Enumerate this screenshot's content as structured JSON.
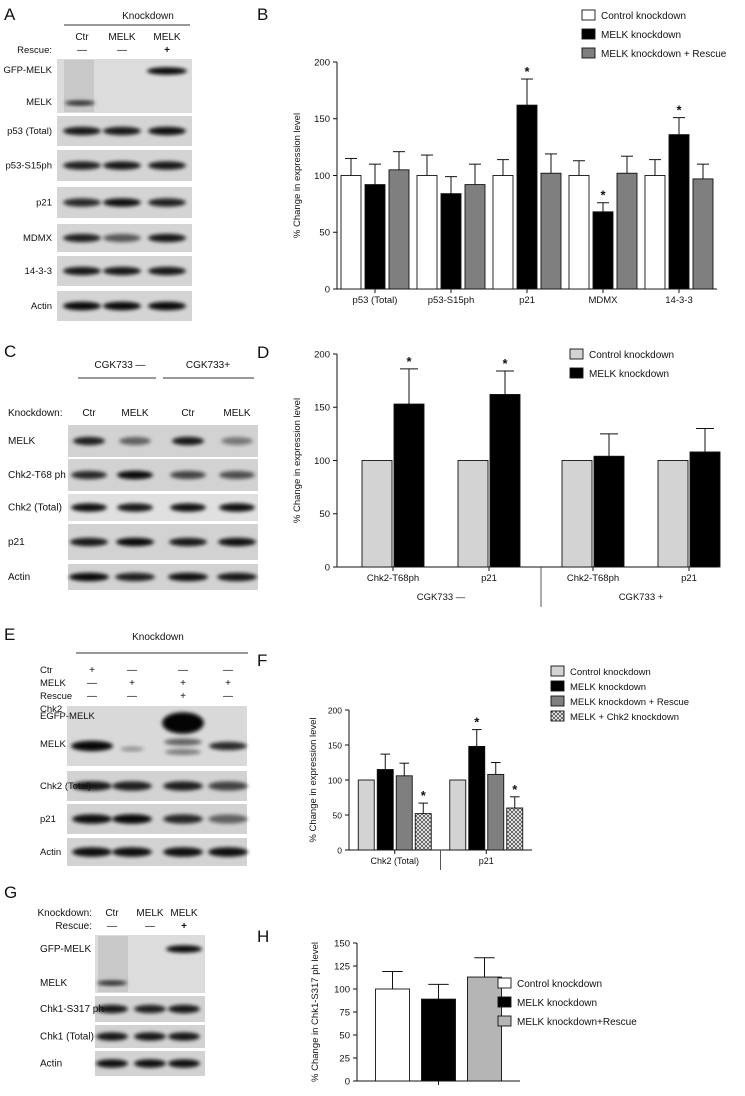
{
  "panelA": {
    "letter": "A",
    "header": "Knockdown",
    "row_label": "Rescue:",
    "lanes": [
      {
        "label": "Ctr",
        "rescue": "—"
      },
      {
        "label": "MELK",
        "rescue": "—"
      },
      {
        "label": "MELK",
        "rescue": "+"
      }
    ],
    "blots": [
      "GFP-MELK",
      "MELK",
      "p53 (Total)",
      "p53-S15ph",
      "p21",
      "MDMX",
      "14-3-3",
      "Actin"
    ]
  },
  "panelC": {
    "letter": "C",
    "groups": [
      "CGK733 —",
      "CGK733+"
    ],
    "row_label": "Knockdown:",
    "lanes": [
      "Ctr",
      "MELK",
      "Ctr",
      "MELK"
    ],
    "blots": [
      "MELK",
      "Chk2-T68 ph",
      "Chk2 (Total)",
      "p21",
      "Actin"
    ]
  },
  "panelE": {
    "letter": "E",
    "header": "Knockdown",
    "conditions": [
      {
        "name": "Ctr",
        "marks": [
          "+",
          "—",
          "—",
          "—"
        ]
      },
      {
        "name": "MELK",
        "marks": [
          "—",
          "+",
          "+",
          "+"
        ]
      },
      {
        "name": "Rescue",
        "marks": [
          "—",
          "—",
          "+",
          "—"
        ]
      },
      {
        "name": "Chk2",
        "marks": [
          "—",
          "—",
          "—",
          "+"
        ]
      }
    ],
    "blots": [
      "EGFP-MELK",
      "MELK",
      "Chk2 (Total)",
      "p21",
      "Actin"
    ]
  },
  "panelG": {
    "letter": "G",
    "knockdown_label": "Knockdown:",
    "rescue_label": "Rescue:",
    "lanes": [
      {
        "label": "Ctr",
        "rescue": "—"
      },
      {
        "label": "MELK",
        "rescue": "—"
      },
      {
        "label": "MELK",
        "rescue": "+"
      }
    ],
    "blots": [
      "GFP-MELK",
      "MELK",
      "Chk1-S317 ph",
      "Chk1 (Total)",
      "Actin"
    ]
  },
  "colors": {
    "control_white": "#ffffff",
    "control_gray": "#d3d3d3",
    "melk_black": "#000000",
    "rescue_gray": "#7f7f7f",
    "rescue_light": "#b5b5b5",
    "chk2_hatch": "#9a9a9a"
  },
  "chart_data": [
    {
      "panel": "B",
      "type": "bar",
      "ylabel": "% Change in expression level",
      "ylim": [
        0,
        200
      ],
      "yticks": [
        0,
        50,
        100,
        150,
        200
      ],
      "categories": [
        "p53 (Total)",
        "p53-S15ph",
        "p21",
        "MDMX",
        "14-3-3"
      ],
      "legend": "top-right",
      "series": [
        {
          "name": "Control knockdown",
          "color": "#ffffff",
          "values": [
            100,
            100,
            100,
            100,
            100
          ],
          "errors": [
            15,
            18,
            14,
            13,
            14
          ],
          "sig": [
            false,
            false,
            false,
            false,
            false
          ]
        },
        {
          "name": "MELK knockdown",
          "color": "#000000",
          "values": [
            92,
            84,
            162,
            68,
            136
          ],
          "errors": [
            18,
            15,
            23,
            8,
            15
          ],
          "sig": [
            false,
            false,
            true,
            true,
            true
          ]
        },
        {
          "name": "MELK knockdown + Rescue",
          "color": "#7f7f7f",
          "values": [
            105,
            92,
            102,
            102,
            97
          ],
          "errors": [
            16,
            18,
            17,
            15,
            13
          ],
          "sig": [
            false,
            false,
            false,
            false,
            false
          ]
        }
      ],
      "sig_mark": "*"
    },
    {
      "panel": "D",
      "type": "bar",
      "ylabel": "% Change in expression level",
      "ylim": [
        0,
        200
      ],
      "yticks": [
        0,
        50,
        100,
        150,
        200
      ],
      "categories": [
        "Chk2-T68ph",
        "p21",
        "Chk2-T68ph",
        "p21"
      ],
      "groups": [
        {
          "label": "CGK733 —",
          "span": [
            0,
            1
          ]
        },
        {
          "label": "CGK733 +",
          "span": [
            2,
            3
          ]
        }
      ],
      "legend": "top-right",
      "series": [
        {
          "name": "Control knockdown",
          "color": "#d3d3d3",
          "values": [
            100,
            100,
            100,
            100
          ],
          "errors": [
            0,
            0,
            0,
            0
          ],
          "sig": [
            false,
            false,
            false,
            false
          ]
        },
        {
          "name": "MELK knockdown",
          "color": "#000000",
          "values": [
            153,
            162,
            104,
            108
          ],
          "errors": [
            33,
            22,
            21,
            22
          ],
          "sig": [
            true,
            true,
            false,
            false
          ]
        }
      ],
      "sig_mark": "*"
    },
    {
      "panel": "F",
      "type": "bar",
      "ylabel": "% Change in expression level",
      "ylim": [
        0,
        200
      ],
      "yticks": [
        0,
        50,
        100,
        150,
        200
      ],
      "categories": [
        "Chk2 (Total)",
        "p21"
      ],
      "legend": "top-right",
      "series": [
        {
          "name": "Control knockdown",
          "color": "#d3d3d3",
          "values": [
            100,
            100
          ],
          "errors": [
            0,
            0
          ],
          "sig": [
            false,
            false
          ]
        },
        {
          "name": "MELK knockdown",
          "color": "#000000",
          "values": [
            115,
            148
          ],
          "errors": [
            22,
            24
          ],
          "sig": [
            false,
            true
          ]
        },
        {
          "name": "MELK knockdown + Rescue",
          "color": "#7f7f7f",
          "values": [
            106,
            108
          ],
          "errors": [
            18,
            17
          ],
          "sig": [
            false,
            false
          ]
        },
        {
          "name": "MELK + Chk2 knockdown",
          "color": "#9a9a9a",
          "hatch": true,
          "values": [
            52,
            60
          ],
          "errors": [
            15,
            16
          ],
          "sig": [
            true,
            true
          ]
        }
      ],
      "sig_mark": "*"
    },
    {
      "panel": "H",
      "type": "bar",
      "ylabel": "% Change in Chk1-S317 ph level",
      "ylim": [
        0,
        150
      ],
      "yticks": [
        0,
        25,
        50,
        75,
        100,
        125,
        150
      ],
      "categories": [
        ""
      ],
      "legend": "right",
      "series": [
        {
          "name": "Control knockdown",
          "color": "#ffffff",
          "values": [
            100
          ],
          "errors": [
            19
          ],
          "sig": [
            false
          ]
        },
        {
          "name": "MELK knockdown",
          "color": "#000000",
          "values": [
            89
          ],
          "errors": [
            16
          ],
          "sig": [
            false
          ]
        },
        {
          "name": "MELK knockdown+Rescue",
          "color": "#b5b5b5",
          "values": [
            113
          ],
          "errors": [
            21
          ],
          "sig": [
            false
          ]
        }
      ]
    }
  ]
}
